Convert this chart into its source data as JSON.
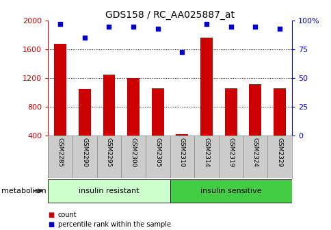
{
  "title": "GDS158 / RC_AA025887_at",
  "samples": [
    "GSM2285",
    "GSM2290",
    "GSM2295",
    "GSM2300",
    "GSM2305",
    "GSM2310",
    "GSM2314",
    "GSM2319",
    "GSM2324",
    "GSM2329"
  ],
  "counts": [
    1680,
    1050,
    1250,
    1200,
    1060,
    420,
    1760,
    1060,
    1120,
    1060
  ],
  "percentile_ranks": [
    97,
    85,
    95,
    95,
    93,
    73,
    97,
    95,
    95,
    93
  ],
  "groups": [
    {
      "label": "insulin resistant",
      "start": 0,
      "end": 4,
      "color": "#ccffcc"
    },
    {
      "label": "insulin sensitive",
      "start": 5,
      "end": 9,
      "color": "#44cc44"
    }
  ],
  "group_label": "metabolism",
  "bar_color": "#cc0000",
  "dot_color": "#0000cc",
  "ylim_left": [
    400,
    2000
  ],
  "ylim_right": [
    0,
    100
  ],
  "yticks_left": [
    400,
    800,
    1200,
    1600,
    2000
  ],
  "yticks_right": [
    0,
    25,
    50,
    75,
    100
  ],
  "tick_area_bg": "#cccccc",
  "left_axis_color": "#cc0000",
  "right_axis_color": "#0000cc",
  "bar_width": 0.5,
  "legend_items": [
    "count",
    "percentile rank within the sample"
  ]
}
